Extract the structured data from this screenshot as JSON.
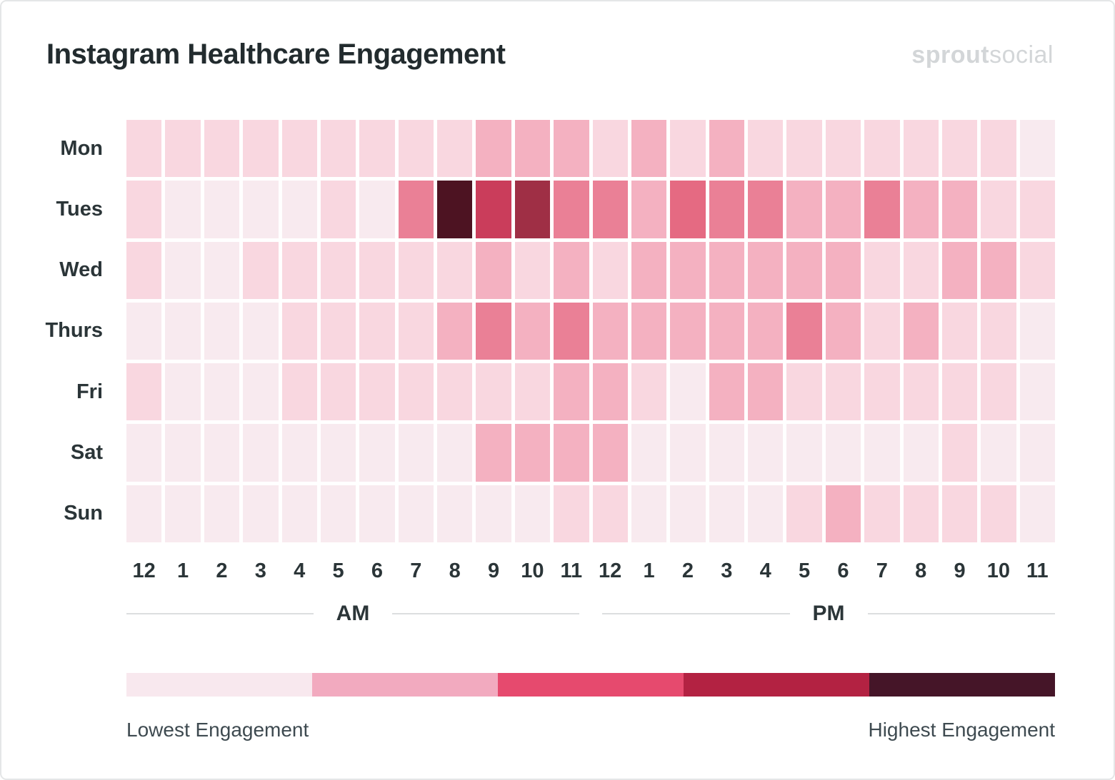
{
  "header": {
    "title": "Instagram Healthcare Engagement",
    "logo_bold": "sprout",
    "logo_light": "social"
  },
  "chart_data": {
    "type": "heatmap",
    "title": "Instagram Healthcare Engagement",
    "rows": [
      "Mon",
      "Tues",
      "Wed",
      "Thurs",
      "Fri",
      "Sat",
      "Sun"
    ],
    "columns": [
      "12",
      "1",
      "2",
      "3",
      "4",
      "5",
      "6",
      "7",
      "8",
      "9",
      "10",
      "11",
      "12",
      "1",
      "2",
      "3",
      "4",
      "5",
      "6",
      "7",
      "8",
      "9",
      "10",
      "11"
    ],
    "column_groups": [
      {
        "label": "AM",
        "start": 0,
        "end": 11
      },
      {
        "label": "PM",
        "start": 12,
        "end": 23
      }
    ],
    "scale": {
      "description": "engagement intensity level per cell, 0 = lowest, 7 = highest",
      "levels": [
        "#f8eaef",
        "#f9d7e0",
        "#f4b1c1",
        "#ea8096",
        "#e56a82",
        "#ca3d5b",
        "#9f2f45",
        "#4d1322"
      ]
    },
    "values": [
      [
        1,
        1,
        1,
        1,
        1,
        1,
        1,
        1,
        1,
        2,
        2,
        2,
        1,
        2,
        1,
        2,
        1,
        1,
        1,
        1,
        1,
        1,
        1,
        0
      ],
      [
        1,
        0,
        0,
        0,
        0,
        1,
        0,
        3,
        7,
        5,
        6,
        3,
        3,
        2,
        4,
        3,
        3,
        2,
        2,
        3,
        2,
        2,
        1,
        1
      ],
      [
        1,
        0,
        0,
        1,
        1,
        1,
        1,
        1,
        1,
        2,
        1,
        2,
        1,
        2,
        2,
        2,
        2,
        2,
        2,
        1,
        1,
        2,
        2,
        1
      ],
      [
        0,
        0,
        0,
        0,
        1,
        1,
        1,
        1,
        2,
        3,
        2,
        3,
        2,
        2,
        2,
        2,
        2,
        3,
        2,
        1,
        2,
        1,
        1,
        0
      ],
      [
        1,
        0,
        0,
        0,
        1,
        1,
        1,
        1,
        1,
        1,
        1,
        2,
        2,
        1,
        0,
        2,
        2,
        1,
        1,
        1,
        1,
        1,
        1,
        0
      ],
      [
        0,
        0,
        0,
        0,
        0,
        0,
        0,
        0,
        0,
        2,
        2,
        2,
        2,
        0,
        0,
        0,
        0,
        0,
        0,
        0,
        0,
        1,
        0,
        0
      ],
      [
        0,
        0,
        0,
        0,
        0,
        0,
        0,
        0,
        0,
        0,
        0,
        1,
        1,
        0,
        0,
        0,
        0,
        1,
        2,
        1,
        1,
        1,
        1,
        0
      ]
    ]
  },
  "legend": {
    "colors": [
      "#f8e8ee",
      "#f2aabf",
      "#e64a6e",
      "#b32242",
      "#451528"
    ],
    "low_label": "Lowest Engagement",
    "high_label": "Highest Engagement"
  }
}
